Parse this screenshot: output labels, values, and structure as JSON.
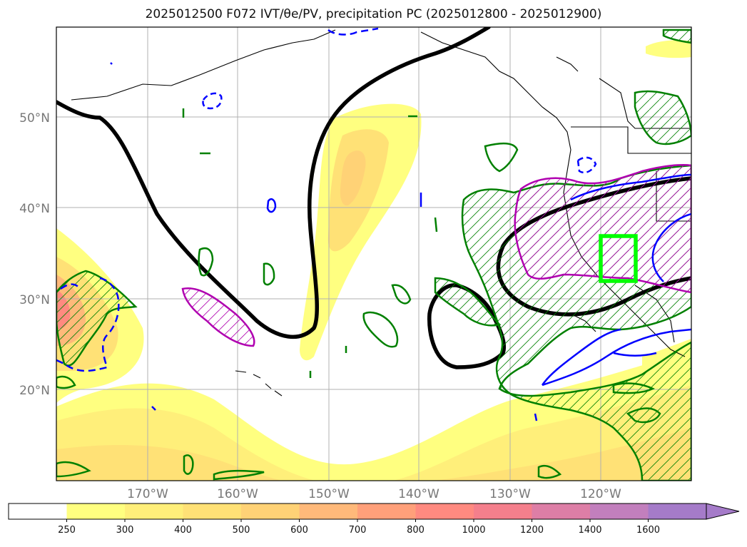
{
  "title": "2025012500 F072 IVT/θe/PV, precipitation PC (2025012800 - 2025012900)",
  "lat_labels": [
    "50°N",
    "40°N",
    "30°N",
    "20°N"
  ],
  "lon_labels": [
    "170°W",
    "160°W",
    "150°W",
    "140°W",
    "130°W",
    "120°W"
  ],
  "colorbar": {
    "levels": [
      "250",
      "300",
      "400",
      "500",
      "600",
      "700",
      "800",
      "1000",
      "1200",
      "1400",
      "1600"
    ],
    "colors": [
      "#ffffff",
      "#ffff80",
      "#ffef7a",
      "#ffe176",
      "#ffd276",
      "#ffb97a",
      "#ffa07a",
      "#ff8a80",
      "#f47f8c",
      "#dd7ea6",
      "#c27fbd",
      "#a57bc9"
    ]
  },
  "legend_colors": {
    "ivt_fill": "#ffe176",
    "theta_contour": "#000000",
    "pv_positive": "#0000ff",
    "precip_pc": "#008000",
    "pv_magenta": "#b000b0",
    "target_box": "#00ff00"
  }
}
